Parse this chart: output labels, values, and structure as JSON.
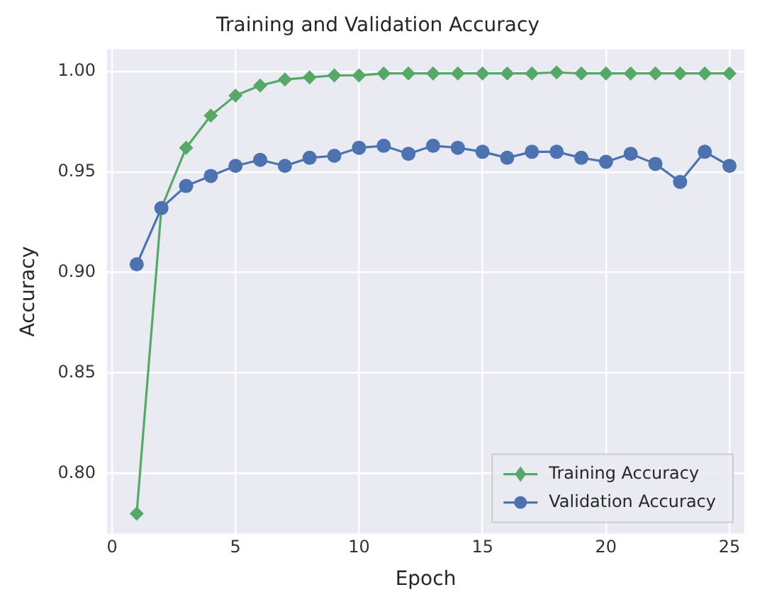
{
  "chart_data": {
    "type": "line",
    "title": "Training and Validation Accuracy",
    "xlabel": "Epoch",
    "ylabel": "Accuracy",
    "x": [
      1,
      2,
      3,
      4,
      5,
      6,
      7,
      8,
      9,
      10,
      11,
      12,
      13,
      14,
      15,
      16,
      17,
      18,
      19,
      20,
      21,
      22,
      23,
      24,
      25
    ],
    "series": [
      {
        "name": "Training Accuracy",
        "color": "#55a868",
        "marker": "diamond",
        "values": [
          0.78,
          0.932,
          0.962,
          0.978,
          0.988,
          0.993,
          0.996,
          0.997,
          0.998,
          0.998,
          0.999,
          0.999,
          0.999,
          0.999,
          0.999,
          0.999,
          0.999,
          0.9995,
          0.999,
          0.999,
          0.999,
          0.999,
          0.999,
          0.999,
          0.999
        ]
      },
      {
        "name": "Validation Accuracy",
        "color": "#4c72b0",
        "marker": "circle",
        "values": [
          0.904,
          0.932,
          0.943,
          0.948,
          0.953,
          0.956,
          0.953,
          0.957,
          0.958,
          0.962,
          0.963,
          0.959,
          0.963,
          0.962,
          0.96,
          0.957,
          0.96,
          0.96,
          0.957,
          0.955,
          0.959,
          0.954,
          0.945,
          0.96,
          0.953
        ]
      }
    ],
    "xlim": [
      -0.2,
      25.6
    ],
    "ylim": [
      0.77,
      1.011
    ],
    "xticks": [
      0,
      5,
      10,
      15,
      20,
      25
    ],
    "yticks": [
      {
        "value": 0.8,
        "label": "0.80"
      },
      0.85,
      {
        "value": 0.9,
        "label": "0.90"
      },
      0.95,
      {
        "value": 1,
        "label": "1.00"
      }
    ],
    "grid": true,
    "legend": "bottom right",
    "line_style": "solid"
  }
}
